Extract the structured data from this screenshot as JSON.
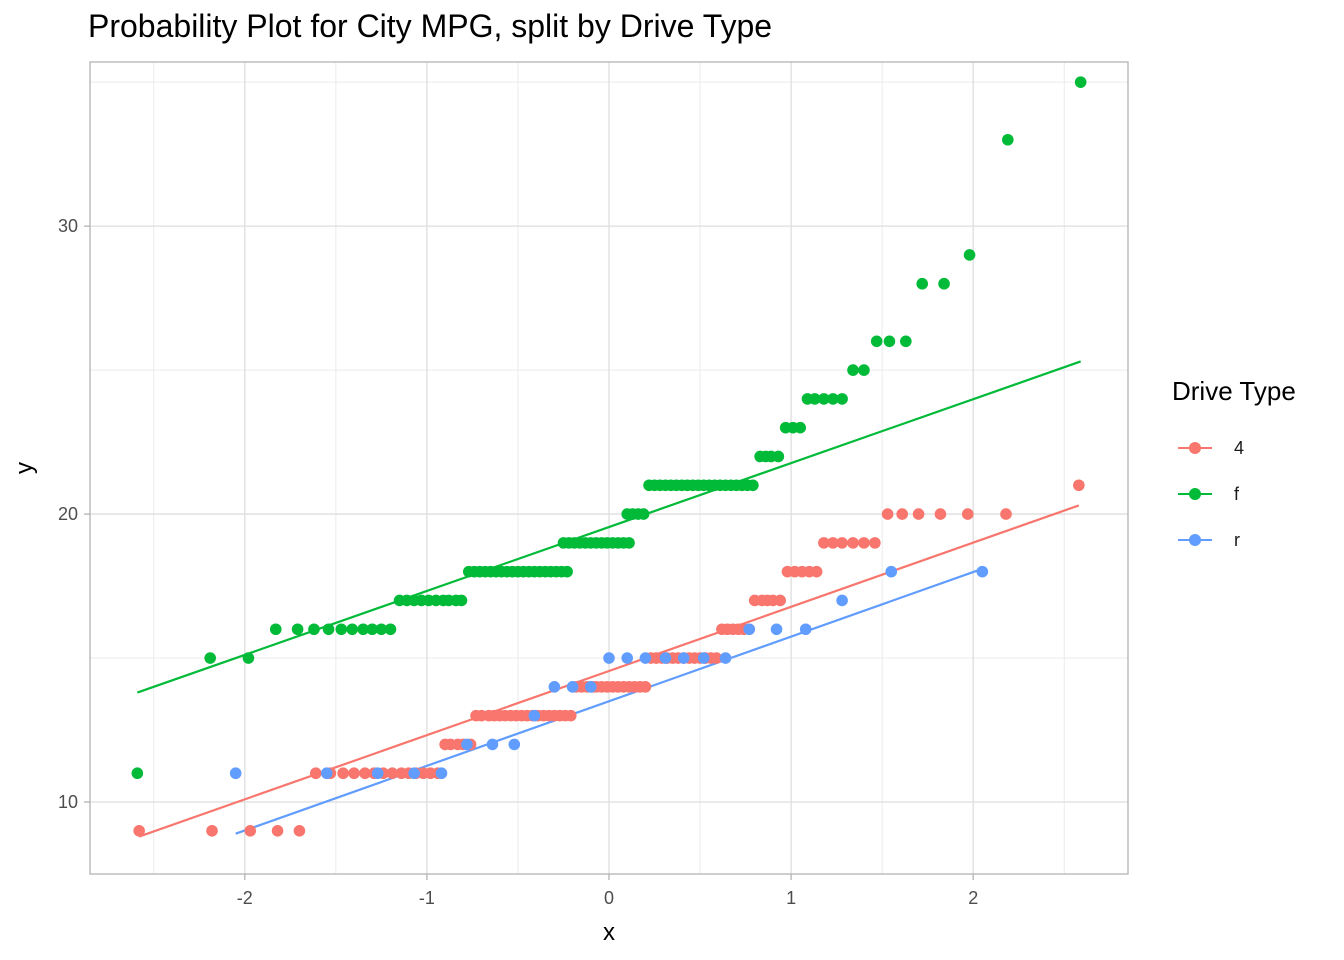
{
  "chart_data": {
    "type": "scatter",
    "title": "Probability Plot for City MPG, split by Drive Type",
    "xlabel": "x",
    "ylabel": "y",
    "xlim": [
      -2.85,
      2.85
    ],
    "ylim": [
      7.5,
      35.7
    ],
    "x_ticks": [
      -2,
      -1,
      0,
      1,
      2
    ],
    "x_tick_labels": [
      "-2",
      "-1",
      "0",
      "1",
      "2"
    ],
    "y_ticks": [
      10,
      20,
      30
    ],
    "y_tick_labels": [
      "10",
      "20",
      "30"
    ],
    "grid": true,
    "legend_title": "Drive Type",
    "legend_position": "right",
    "series": [
      {
        "name": "4",
        "color": "#F8766D",
        "points": [
          [
            -2.58,
            9
          ],
          [
            -2.18,
            9
          ],
          [
            -1.97,
            9
          ],
          [
            -1.82,
            9
          ],
          [
            -1.7,
            9
          ],
          [
            -1.61,
            11
          ],
          [
            -1.53,
            11
          ],
          [
            -1.46,
            11
          ],
          [
            -1.4,
            11
          ],
          [
            -1.34,
            11
          ],
          [
            -1.29,
            11
          ],
          [
            -1.24,
            11
          ],
          [
            -1.19,
            11
          ],
          [
            -1.14,
            11
          ],
          [
            -1.1,
            11
          ],
          [
            -1.06,
            11
          ],
          [
            -1.02,
            11
          ],
          [
            -0.98,
            11
          ],
          [
            -0.94,
            11
          ],
          [
            -0.9,
            12
          ],
          [
            -0.87,
            12
          ],
          [
            -0.83,
            12
          ],
          [
            -0.8,
            12
          ],
          [
            -0.76,
            12
          ],
          [
            -0.73,
            13
          ],
          [
            -0.7,
            13
          ],
          [
            -0.66,
            13
          ],
          [
            -0.63,
            13
          ],
          [
            -0.6,
            13
          ],
          [
            -0.57,
            13
          ],
          [
            -0.54,
            13
          ],
          [
            -0.51,
            13
          ],
          [
            -0.48,
            13
          ],
          [
            -0.45,
            13
          ],
          [
            -0.42,
            13
          ],
          [
            -0.39,
            13
          ],
          [
            -0.36,
            13
          ],
          [
            -0.33,
            13
          ],
          [
            -0.3,
            13
          ],
          [
            -0.27,
            13
          ],
          [
            -0.24,
            13
          ],
          [
            -0.21,
            13
          ],
          [
            -0.18,
            14
          ],
          [
            -0.15,
            14
          ],
          [
            -0.12,
            14
          ],
          [
            -0.09,
            14
          ],
          [
            -0.07,
            14
          ],
          [
            -0.04,
            14
          ],
          [
            -0.01,
            14
          ],
          [
            0.02,
            14
          ],
          [
            0.05,
            14
          ],
          [
            0.08,
            14
          ],
          [
            0.11,
            14
          ],
          [
            0.14,
            14
          ],
          [
            0.17,
            14
          ],
          [
            0.2,
            14
          ],
          [
            0.23,
            15
          ],
          [
            0.26,
            15
          ],
          [
            0.29,
            15
          ],
          [
            0.32,
            15
          ],
          [
            0.35,
            15
          ],
          [
            0.38,
            15
          ],
          [
            0.41,
            15
          ],
          [
            0.44,
            15
          ],
          [
            0.47,
            15
          ],
          [
            0.5,
            15
          ],
          [
            0.53,
            15
          ],
          [
            0.56,
            15
          ],
          [
            0.59,
            15
          ],
          [
            0.62,
            16
          ],
          [
            0.65,
            16
          ],
          [
            0.68,
            16
          ],
          [
            0.71,
            16
          ],
          [
            0.74,
            16
          ],
          [
            0.77,
            16
          ],
          [
            0.8,
            17
          ],
          [
            0.84,
            17
          ],
          [
            0.87,
            17
          ],
          [
            0.9,
            17
          ],
          [
            0.94,
            17
          ],
          [
            0.98,
            18
          ],
          [
            1.02,
            18
          ],
          [
            1.06,
            18
          ],
          [
            1.1,
            18
          ],
          [
            1.14,
            18
          ],
          [
            1.18,
            19
          ],
          [
            1.23,
            19
          ],
          [
            1.28,
            19
          ],
          [
            1.34,
            19
          ],
          [
            1.4,
            19
          ],
          [
            1.46,
            19
          ],
          [
            1.53,
            20
          ],
          [
            1.61,
            20
          ],
          [
            1.7,
            20
          ],
          [
            1.82,
            20
          ],
          [
            1.97,
            20
          ],
          [
            2.18,
            20
          ],
          [
            2.58,
            21
          ]
        ],
        "line": [
          [
            -2.58,
            8.8
          ],
          [
            2.58,
            20.3
          ]
        ]
      },
      {
        "name": "f",
        "color": "#00BA38",
        "points": [
          [
            -2.59,
            11
          ],
          [
            -2.19,
            15
          ],
          [
            -1.98,
            15
          ],
          [
            -1.83,
            16
          ],
          [
            -1.71,
            16
          ],
          [
            -1.62,
            16
          ],
          [
            -1.54,
            16
          ],
          [
            -1.47,
            16
          ],
          [
            -1.41,
            16
          ],
          [
            -1.35,
            16
          ],
          [
            -1.3,
            16
          ],
          [
            -1.25,
            16
          ],
          [
            -1.2,
            16
          ],
          [
            -1.15,
            17
          ],
          [
            -1.11,
            17
          ],
          [
            -1.07,
            17
          ],
          [
            -1.03,
            17
          ],
          [
            -0.99,
            17
          ],
          [
            -0.95,
            17
          ],
          [
            -0.91,
            17
          ],
          [
            -0.88,
            17
          ],
          [
            -0.84,
            17
          ],
          [
            -0.81,
            17
          ],
          [
            -0.77,
            18
          ],
          [
            -0.74,
            18
          ],
          [
            -0.71,
            18
          ],
          [
            -0.68,
            18
          ],
          [
            -0.65,
            18
          ],
          [
            -0.62,
            18
          ],
          [
            -0.59,
            18
          ],
          [
            -0.56,
            18
          ],
          [
            -0.53,
            18
          ],
          [
            -0.5,
            18
          ],
          [
            -0.47,
            18
          ],
          [
            -0.44,
            18
          ],
          [
            -0.41,
            18
          ],
          [
            -0.38,
            18
          ],
          [
            -0.35,
            18
          ],
          [
            -0.32,
            18
          ],
          [
            -0.29,
            18
          ],
          [
            -0.26,
            18
          ],
          [
            -0.23,
            18
          ],
          [
            -0.25,
            19
          ],
          [
            -0.22,
            19
          ],
          [
            -0.19,
            19
          ],
          [
            -0.16,
            19
          ],
          [
            -0.13,
            19
          ],
          [
            -0.1,
            19
          ],
          [
            -0.07,
            19
          ],
          [
            -0.04,
            19
          ],
          [
            -0.01,
            19
          ],
          [
            0.02,
            19
          ],
          [
            0.05,
            19
          ],
          [
            0.08,
            19
          ],
          [
            0.11,
            19
          ],
          [
            0.1,
            20
          ],
          [
            0.13,
            20
          ],
          [
            0.16,
            20
          ],
          [
            0.19,
            20
          ],
          [
            0.22,
            21
          ],
          [
            0.25,
            21
          ],
          [
            0.28,
            21
          ],
          [
            0.31,
            21
          ],
          [
            0.34,
            21
          ],
          [
            0.37,
            21
          ],
          [
            0.4,
            21
          ],
          [
            0.43,
            21
          ],
          [
            0.46,
            21
          ],
          [
            0.49,
            21
          ],
          [
            0.52,
            21
          ],
          [
            0.55,
            21
          ],
          [
            0.58,
            21
          ],
          [
            0.61,
            21
          ],
          [
            0.64,
            21
          ],
          [
            0.67,
            21
          ],
          [
            0.7,
            21
          ],
          [
            0.73,
            21
          ],
          [
            0.76,
            21
          ],
          [
            0.79,
            21
          ],
          [
            0.83,
            22
          ],
          [
            0.86,
            22
          ],
          [
            0.89,
            22
          ],
          [
            0.93,
            22
          ],
          [
            0.97,
            23
          ],
          [
            1.01,
            23
          ],
          [
            1.05,
            23
          ],
          [
            1.09,
            24
          ],
          [
            1.13,
            24
          ],
          [
            1.18,
            24
          ],
          [
            1.23,
            24
          ],
          [
            1.28,
            24
          ],
          [
            1.34,
            25
          ],
          [
            1.4,
            25
          ],
          [
            1.47,
            26
          ],
          [
            1.54,
            26
          ],
          [
            1.63,
            26
          ],
          [
            1.72,
            28
          ],
          [
            1.84,
            28
          ],
          [
            1.98,
            29
          ],
          [
            2.19,
            33
          ],
          [
            2.59,
            35
          ]
        ],
        "line": [
          [
            -2.59,
            13.8
          ],
          [
            2.59,
            25.3
          ]
        ]
      },
      {
        "name": "r",
        "color": "#619CFF",
        "points": [
          [
            -2.05,
            11
          ],
          [
            -1.55,
            11
          ],
          [
            -1.27,
            11
          ],
          [
            -1.07,
            11
          ],
          [
            -0.92,
            11
          ],
          [
            -0.78,
            12
          ],
          [
            -0.64,
            12
          ],
          [
            -0.52,
            12
          ],
          [
            -0.41,
            13
          ],
          [
            -0.3,
            14
          ],
          [
            -0.2,
            14
          ],
          [
            -0.1,
            14
          ],
          [
            0.0,
            15
          ],
          [
            0.1,
            15
          ],
          [
            0.2,
            15
          ],
          [
            0.31,
            15
          ],
          [
            0.41,
            15
          ],
          [
            0.52,
            15
          ],
          [
            0.64,
            15
          ],
          [
            0.77,
            16
          ],
          [
            0.92,
            16
          ],
          [
            1.08,
            16
          ],
          [
            1.28,
            17
          ],
          [
            1.55,
            18
          ],
          [
            2.05,
            18
          ]
        ],
        "line": [
          [
            -2.05,
            8.9
          ],
          [
            2.05,
            18.1
          ]
        ]
      }
    ]
  }
}
